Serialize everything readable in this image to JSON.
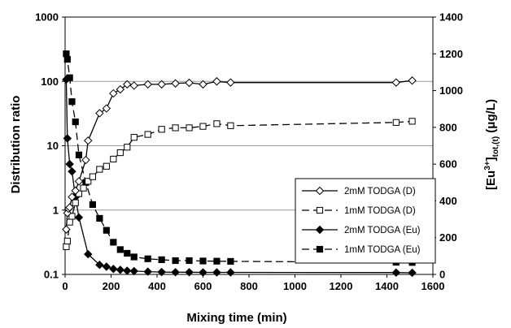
{
  "chart_data": {
    "type": "line",
    "xlabel": "Mixing time (min)",
    "ylabel_left": "Distribution ratio",
    "ylabel_right": {
      "prefix": "[Eu",
      "sup": "3+",
      "middle": "]",
      "sub": "tot,(t)",
      "suffix": "  (μg/L)"
    },
    "xlim": [
      0,
      1600
    ],
    "xticks": [
      "0",
      "200",
      "400",
      "600",
      "800",
      "1000",
      "1200",
      "1400",
      "1600"
    ],
    "ylim_left": [
      0.1,
      1000
    ],
    "yscale_left": "log",
    "yticks_left": [
      "0.1",
      "1",
      "10",
      "100",
      "1000"
    ],
    "ylim_right": [
      0,
      1400
    ],
    "yticks_right": [
      "0",
      "200",
      "400",
      "600",
      "800",
      "1000",
      "1200",
      "1400"
    ],
    "legend_position": "center-right",
    "series": [
      {
        "name": "2mM TODGA (D)",
        "axis": "left",
        "marker": "diamond-open",
        "line": "solid",
        "points": [
          [
            5,
            0.5
          ],
          [
            10,
            0.9
          ],
          [
            15,
            1.05
          ],
          [
            20,
            1.1
          ],
          [
            30,
            1.6
          ],
          [
            45,
            2.0
          ],
          [
            60,
            2.8
          ],
          [
            90,
            6.0
          ],
          [
            100,
            12
          ],
          [
            150,
            32
          ],
          [
            180,
            38
          ],
          [
            210,
            65
          ],
          [
            240,
            75
          ],
          [
            270,
            90
          ],
          [
            300,
            86
          ],
          [
            360,
            90
          ],
          [
            420,
            90
          ],
          [
            480,
            93
          ],
          [
            540,
            95
          ],
          [
            600,
            90
          ],
          [
            660,
            100
          ],
          [
            720,
            96
          ],
          [
            1440,
            96
          ],
          [
            1510,
            103
          ]
        ]
      },
      {
        "name": "1mM TODGA (D)",
        "axis": "left",
        "marker": "square-open",
        "line": "dashed",
        "points": [
          [
            5,
            0.27
          ],
          [
            10,
            0.33
          ],
          [
            20,
            0.65
          ],
          [
            30,
            0.8
          ],
          [
            45,
            1.3
          ],
          [
            60,
            1.8
          ],
          [
            80,
            2.2
          ],
          [
            100,
            2.8
          ],
          [
            120,
            3.3
          ],
          [
            150,
            4.3
          ],
          [
            180,
            4.8
          ],
          [
            210,
            6.2
          ],
          [
            240,
            7.8
          ],
          [
            270,
            9.5
          ],
          [
            300,
            13.5
          ],
          [
            360,
            15
          ],
          [
            420,
            18
          ],
          [
            480,
            19
          ],
          [
            540,
            19
          ],
          [
            600,
            20
          ],
          [
            660,
            22
          ],
          [
            720,
            20.5
          ],
          [
            1440,
            23
          ],
          [
            1510,
            24
          ]
        ]
      },
      {
        "name": "2mM TODGA (Eu)",
        "axis": "right",
        "marker": "diamond-filled",
        "line": "solid",
        "points": [
          [
            5,
            1060
          ],
          [
            10,
            740
          ],
          [
            20,
            600
          ],
          [
            30,
            560
          ],
          [
            45,
            420
          ],
          [
            60,
            310
          ],
          [
            100,
            110
          ],
          [
            150,
            52
          ],
          [
            180,
            42
          ],
          [
            210,
            30
          ],
          [
            240,
            25
          ],
          [
            270,
            20
          ],
          [
            300,
            18
          ],
          [
            360,
            15
          ],
          [
            420,
            13
          ],
          [
            480,
            12
          ],
          [
            540,
            12
          ],
          [
            600,
            11
          ],
          [
            660,
            11
          ],
          [
            720,
            11
          ],
          [
            1440,
            10
          ],
          [
            1510,
            9
          ]
        ]
      },
      {
        "name": "1mM TODGA (Eu)",
        "axis": "right",
        "marker": "square-filled",
        "line": "dashed",
        "points": [
          [
            5,
            1200
          ],
          [
            10,
            1170
          ],
          [
            20,
            1070
          ],
          [
            30,
            940
          ],
          [
            45,
            830
          ],
          [
            60,
            650
          ],
          [
            90,
            500
          ],
          [
            120,
            380
          ],
          [
            150,
            305
          ],
          [
            180,
            240
          ],
          [
            210,
            175
          ],
          [
            240,
            135
          ],
          [
            270,
            115
          ],
          [
            300,
            95
          ],
          [
            360,
            85
          ],
          [
            420,
            80
          ],
          [
            480,
            75
          ],
          [
            540,
            75
          ],
          [
            600,
            73
          ],
          [
            660,
            72
          ],
          [
            720,
            71
          ],
          [
            1440,
            66
          ],
          [
            1510,
            65
          ]
        ]
      }
    ]
  }
}
